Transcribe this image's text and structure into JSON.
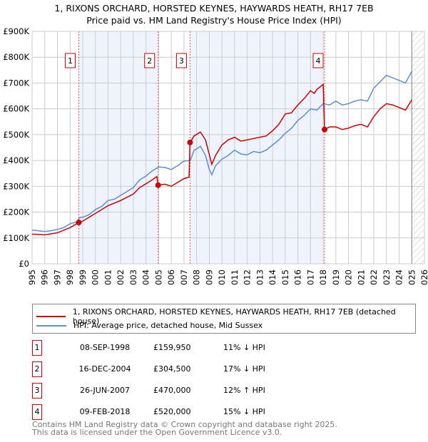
{
  "title": "1, RIXONS ORCHARD, HORSTED KEYNES, HAYWARDS HEATH, RH17 7EB",
  "subtitle": "Price paid vs. HM Land Registry's House Price Index (HPI)",
  "chart_data": {
    "type": "line",
    "ylim": [
      0,
      900000
    ],
    "xlim": [
      1995,
      2026
    ],
    "yticks": [
      "£0",
      "£100K",
      "£200K",
      "£300K",
      "£400K",
      "£500K",
      "£600K",
      "£700K",
      "£800K",
      "£900K"
    ],
    "xticks": [
      "1995",
      "1996",
      "1997",
      "1998",
      "1999",
      "2000",
      "2001",
      "2002",
      "2003",
      "2004",
      "2005",
      "2006",
      "2007",
      "2008",
      "2009",
      "2010",
      "2011",
      "2012",
      "2013",
      "2014",
      "2015",
      "2016",
      "2017",
      "2018",
      "2019",
      "2020",
      "2021",
      "2022",
      "2023",
      "2024",
      "2025",
      "2026"
    ],
    "forecast_from": 2025,
    "series": [
      {
        "name": "1, RIXONS ORCHARD, HORSTED KEYNES, HAYWARDS HEATH, RH17 7EB (detached house)",
        "color": "#cc0000",
        "x": [
          1995,
          1996,
          1997,
          1998,
          1998.69,
          1999,
          2000,
          2001,
          2002,
          2003,
          2003.5,
          2004,
          2004.5,
          2004.85,
          2004.96,
          2005.5,
          2006,
          2006.5,
          2007,
          2007.4,
          2007.48,
          2007.8,
          2008.3,
          2008.7,
          2009.2,
          2009.5,
          2010,
          2010.5,
          2011,
          2011.5,
          2012,
          2012.5,
          2013,
          2013.5,
          2014,
          2014.5,
          2015,
          2015.5,
          2016,
          2016.5,
          2017,
          2017.3,
          2017.5,
          2018.0,
          2018.11,
          2018.5,
          2019,
          2019.5,
          2020,
          2020.5,
          2021,
          2021.5,
          2022,
          2022.5,
          2023,
          2023.5,
          2024,
          2024.5,
          2025
        ],
        "y": [
          115000,
          112000,
          120000,
          140000,
          159950,
          165000,
          195000,
          225000,
          245000,
          270000,
          295000,
          310000,
          325000,
          338000,
          304500,
          308000,
          300000,
          315000,
          330000,
          335000,
          470000,
          495000,
          510000,
          480000,
          385000,
          420000,
          460000,
          480000,
          490000,
          475000,
          480000,
          485000,
          490000,
          495000,
          515000,
          540000,
          580000,
          585000,
          615000,
          640000,
          670000,
          660000,
          675000,
          695000,
          520000,
          530000,
          530000,
          520000,
          525000,
          535000,
          540000,
          530000,
          570000,
          600000,
          620000,
          615000,
          605000,
          595000,
          635000
        ]
      },
      {
        "name": "HPI: Average price, detached house, Mid Sussex",
        "color": "#5b8fd4",
        "x": [
          1995,
          1995.5,
          1996,
          1996.5,
          1997,
          1997.5,
          1998,
          1998.5,
          1998.8,
          1999,
          1999.5,
          2000,
          2000.5,
          2001,
          2001.5,
          2002,
          2002.5,
          2003,
          2003.5,
          2004,
          2004.5,
          2005,
          2005.5,
          2006,
          2006.5,
          2007,
          2007.5,
          2007.8,
          2008,
          2008.3,
          2008.7,
          2009,
          2009.2,
          2009.5,
          2010,
          2010.5,
          2011,
          2011.5,
          2012,
          2012.5,
          2013,
          2013.5,
          2014,
          2014.5,
          2015,
          2015.5,
          2016,
          2016.5,
          2017,
          2017.5,
          2018,
          2018.5,
          2019,
          2019.5,
          2020,
          2020.5,
          2021,
          2021.5,
          2022,
          2022.5,
          2023,
          2023.5,
          2024,
          2024.5,
          2025
        ],
        "y": [
          130000,
          128000,
          125000,
          128000,
          133000,
          140000,
          155000,
          162000,
          180000,
          180000,
          190000,
          210000,
          222000,
          245000,
          250000,
          265000,
          280000,
          295000,
          325000,
          340000,
          360000,
          375000,
          373000,
          365000,
          380000,
          398000,
          400000,
          440000,
          445000,
          455000,
          420000,
          365000,
          345000,
          380000,
          405000,
          420000,
          440000,
          425000,
          422000,
          435000,
          430000,
          440000,
          460000,
          480000,
          505000,
          525000,
          555000,
          575000,
          600000,
          595000,
          620000,
          615000,
          630000,
          615000,
          620000,
          630000,
          635000,
          630000,
          680000,
          705000,
          730000,
          720000,
          710000,
          700000,
          745000
        ]
      }
    ],
    "sales": [
      {
        "label": "1",
        "x": 1998.69,
        "y": 159950
      },
      {
        "label": "2",
        "x": 2004.96,
        "y": 304500
      },
      {
        "label": "3",
        "x": 2007.48,
        "y": 470000
      },
      {
        "label": "4",
        "x": 2018.11,
        "y": 520000
      }
    ]
  },
  "legend": {
    "property": "1, RIXONS ORCHARD, HORSTED KEYNES, HAYWARDS HEATH, RH17 7EB (detached house)",
    "hpi": "HPI: Average price, detached house, Mid Sussex"
  },
  "table": [
    {
      "num": "1",
      "date": "08-SEP-1998",
      "price": "£159,950",
      "hpi": "11% ↓ HPI"
    },
    {
      "num": "2",
      "date": "16-DEC-2004",
      "price": "£304,500",
      "hpi": "17% ↓ HPI"
    },
    {
      "num": "3",
      "date": "26-JUN-2007",
      "price": "£470,000",
      "hpi": "12% ↑ HPI"
    },
    {
      "num": "4",
      "date": "09-FEB-2018",
      "price": "£520,000",
      "hpi": "15% ↓ HPI"
    }
  ],
  "footer": {
    "line1": "Contains HM Land Registry data © Crown copyright and database right 2025.",
    "line2": "This data is licensed under the Open Government Licence v3.0."
  }
}
